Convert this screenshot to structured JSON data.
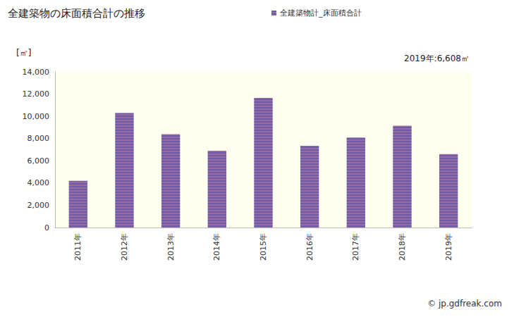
{
  "chart_data": {
    "type": "bar",
    "title": "全建築物の床面積合計の推移",
    "y_label": "[㎡]",
    "annotation": "2019年:6,608㎡",
    "source": "© jp.gdfreak.com",
    "categories": [
      "2011年",
      "2012年",
      "2013年",
      "2014年",
      "2015年",
      "2016年",
      "2017年",
      "2018年",
      "2019年"
    ],
    "series": [
      {
        "name": "全建築物計_床面積合計",
        "color": "#9a6a9c",
        "values": [
          4200,
          10300,
          8400,
          6900,
          11650,
          7350,
          8100,
          9150,
          6608
        ]
      }
    ],
    "ylim": [
      0,
      14000
    ],
    "yticks": [
      0,
      {
        "value": 2000,
        "label": "2,000"
      },
      {
        "value": 4000,
        "label": "4,000"
      },
      {
        "value": 6000,
        "label": "6,000"
      },
      {
        "value": 8000,
        "label": "8,000"
      },
      {
        "value": 10000,
        "label": "10,000"
      },
      {
        "value": 12000,
        "label": "12,000"
      },
      {
        "value": 14000,
        "label": "14,000"
      }
    ],
    "grid": false,
    "legend": "top"
  }
}
